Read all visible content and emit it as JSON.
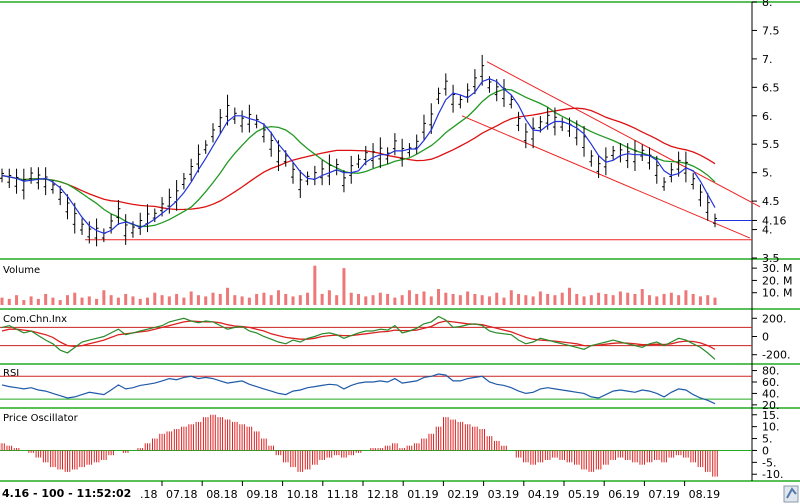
{
  "status_text": "4.16 - 100 - 11:52:02",
  "colors": {
    "price": "#000000",
    "ma_fast": "#2233dd",
    "ma_mid": "#229922",
    "ma_slow": "#dd1111",
    "trend": "#ee2222",
    "volume": "#ee7777",
    "cci": "#2a8a2a",
    "cci_signal": "#dd2222",
    "rsi": "#1f5aa8",
    "osc_pos": "#dd2222",
    "osc_neg": "#dd2222",
    "level": "#22aa22",
    "axis_bg": "#ffffff",
    "icon": "#5577aa"
  },
  "last_price_label": "4.16",
  "x_labels": [
    "07.18",
    "08.18",
    "09.18",
    "10.18",
    "11.18",
    "12.18",
    "01.19",
    "02.19",
    "03.19",
    "04.19",
    "05.19",
    "06.19",
    "07.19",
    "08.19"
  ],
  "x_label_partial": ".18",
  "chart_data": [
    {
      "type": "line",
      "name": "price",
      "series": [
        {
          "name": "",
          "values": [
            4.95,
            4.9,
            4.85,
            4.8,
            4.95,
            4.9,
            4.85,
            4.75,
            4.6,
            4.4,
            4.2,
            4.05,
            3.95,
            3.95,
            3.9,
            4.1,
            4.3,
            4.0,
            4.0,
            4.1,
            4.2,
            4.25,
            4.4,
            4.5,
            4.6,
            4.85,
            5.05,
            5.25,
            5.45,
            5.7,
            5.9,
            6.1,
            6.0,
            5.9,
            5.95,
            5.9,
            5.7,
            5.5,
            5.3,
            5.25,
            5.0,
            4.8,
            4.9,
            4.95,
            5.0,
            5.05,
            5.1,
            4.85,
            5.05,
            5.2,
            5.3,
            5.3,
            5.35,
            5.3,
            5.5,
            5.35,
            5.4,
            5.5,
            5.8,
            5.95,
            6.35,
            6.55,
            6.3,
            6.25,
            6.4,
            6.6,
            6.8,
            6.55,
            6.45,
            6.4,
            6.25,
            5.9,
            5.65,
            5.7,
            5.85,
            5.95,
            5.9,
            5.85,
            5.8,
            5.7,
            5.55,
            5.25,
            5.1,
            5.2,
            5.35,
            5.35,
            5.3,
            5.3,
            5.35,
            5.25,
            5.05,
            4.8,
            5.0,
            5.15,
            5.1,
            4.85,
            4.6,
            4.4,
            4.16
          ]
        }
      ],
      "ylim": [
        3.5,
        8.0
      ],
      "y_ticks": [
        "8.",
        "7.5",
        "7.",
        "6.5",
        "6.",
        "5.5",
        "5.",
        "4.5",
        "4.16",
        "4.",
        "3.5"
      ],
      "y_tick_values": [
        8.0,
        7.5,
        7.0,
        6.5,
        6.0,
        5.5,
        5.0,
        4.5,
        4.16,
        4.0,
        3.5
      ]
    },
    {
      "type": "bar",
      "title": "Volume",
      "y_ticks": [
        "30. M",
        "20. M",
        "10. M"
      ],
      "y_tick_values": [
        30,
        20,
        10
      ],
      "ylim": [
        0,
        35
      ],
      "values": [
        6,
        5,
        8,
        4,
        7,
        5,
        9,
        6,
        4,
        8,
        10,
        6,
        7,
        5,
        12,
        8,
        6,
        9,
        7,
        5,
        6,
        10,
        8,
        7,
        9,
        6,
        11,
        8,
        7,
        10,
        9,
        14,
        8,
        7,
        6,
        9,
        10,
        8,
        12,
        9,
        7,
        8,
        10,
        32,
        9,
        12,
        8,
        30,
        10,
        9,
        7,
        8,
        10,
        9,
        6,
        8,
        12,
        9,
        11,
        7,
        13,
        10,
        9,
        8,
        11,
        9,
        8,
        7,
        10,
        6,
        12,
        9,
        8,
        7,
        11,
        9,
        8,
        10,
        14,
        9,
        7,
        8,
        10,
        9,
        8,
        11,
        10,
        9,
        13,
        8,
        7,
        9,
        10,
        8,
        12,
        9,
        7,
        8,
        6
      ]
    },
    {
      "type": "line",
      "title": "Com.Chn.Inx",
      "y_ticks": [
        "200.",
        "0",
        "-200."
      ],
      "y_tick_values": [
        200,
        0,
        -200
      ],
      "ylim": [
        -280,
        280
      ],
      "series": [
        {
          "name": "",
          "values": [
            100,
            120,
            80,
            40,
            60,
            10,
            -40,
            -80,
            -150,
            -180,
            -120,
            -60,
            -40,
            -20,
            0,
            40,
            80,
            20,
            40,
            60,
            80,
            100,
            120,
            160,
            180,
            200,
            170,
            150,
            170,
            160,
            120,
            80,
            100,
            110,
            60,
            40,
            0,
            -30,
            -60,
            -80,
            -40,
            -60,
            -20,
            0,
            30,
            40,
            20,
            -20,
            10,
            40,
            60,
            60,
            80,
            70,
            120,
            40,
            60,
            90,
            140,
            160,
            220,
            180,
            100,
            110,
            130,
            140,
            120,
            60,
            40,
            30,
            20,
            -40,
            -80,
            -60,
            -20,
            -40,
            -60,
            -80,
            -100,
            -120,
            -140,
            -100,
            -80,
            -60,
            -40,
            -60,
            -80,
            -100,
            -120,
            -80,
            -60,
            -100,
            -60,
            -20,
            -40,
            -80,
            -120,
            -180,
            -250
          ]
        },
        {
          "name": "",
          "values": [
            60,
            80,
            80,
            70,
            60,
            40,
            20,
            -10,
            -60,
            -100,
            -110,
            -100,
            -80,
            -60,
            -40,
            -10,
            20,
            30,
            40,
            50,
            60,
            80,
            100,
            120,
            140,
            160,
            170,
            165,
            160,
            160,
            150,
            130,
            115,
            110,
            100,
            80,
            60,
            30,
            10,
            -10,
            -20,
            -30,
            -30,
            -20,
            0,
            10,
            15,
            10,
            10,
            20,
            30,
            40,
            50,
            55,
            70,
            65,
            65,
            70,
            90,
            110,
            150,
            170,
            160,
            150,
            140,
            135,
            130,
            110,
            90,
            70,
            50,
            20,
            -10,
            -30,
            -40,
            -45,
            -50,
            -60,
            -70,
            -80,
            -100,
            -100,
            -95,
            -85,
            -75,
            -70,
            -72,
            -80,
            -90,
            -90,
            -85,
            -88,
            -80,
            -60,
            -50,
            -55,
            -70,
            -100,
            -140
          ]
        }
      ],
      "levels": [
        100,
        -100
      ]
    },
    {
      "type": "line",
      "title": "RSI",
      "y_ticks": [
        "80.",
        "60.",
        "40.",
        "20."
      ],
      "y_tick_values": [
        80,
        60,
        40,
        20
      ],
      "ylim": [
        18,
        88
      ],
      "levels": [
        70,
        30
      ],
      "series": [
        {
          "name": "",
          "values": [
            55,
            52,
            50,
            48,
            50,
            46,
            44,
            40,
            36,
            32,
            34,
            38,
            42,
            40,
            38,
            46,
            55,
            48,
            50,
            54,
            56,
            58,
            62,
            66,
            64,
            68,
            70,
            66,
            68,
            66,
            62,
            58,
            60,
            62,
            56,
            52,
            48,
            44,
            40,
            38,
            44,
            46,
            50,
            52,
            54,
            56,
            55,
            48,
            54,
            58,
            60,
            60,
            62,
            60,
            66,
            58,
            60,
            62,
            68,
            70,
            74,
            72,
            62,
            62,
            66,
            68,
            70,
            60,
            56,
            54,
            50,
            44,
            40,
            42,
            48,
            50,
            48,
            46,
            44,
            42,
            40,
            34,
            32,
            38,
            44,
            46,
            44,
            42,
            46,
            44,
            40,
            34,
            42,
            48,
            46,
            38,
            32,
            28,
            22
          ]
        }
      ]
    },
    {
      "type": "bar",
      "title": "Price Oscillator",
      "y_ticks": [
        "15.",
        "10.",
        "5.",
        "0",
        "-5.",
        "-10."
      ],
      "y_tick_values": [
        15,
        10,
        5,
        0,
        -5,
        -10
      ],
      "ylim": [
        -12,
        17
      ],
      "values": [
        3,
        2,
        1,
        0,
        -1,
        -3,
        -5,
        -7,
        -8,
        -9,
        -8,
        -7,
        -6,
        -5,
        -4,
        -2,
        0,
        -1,
        0,
        1,
        3,
        5,
        7,
        8,
        9,
        10,
        11,
        12,
        14,
        15,
        14,
        13,
        12,
        11,
        10,
        8,
        5,
        2,
        -2,
        -5,
        -7,
        -9,
        -8,
        -6,
        -4,
        -3,
        -2,
        -3,
        -2,
        -1,
        0,
        1,
        1,
        2,
        3,
        1,
        2,
        3,
        5,
        7,
        10,
        14,
        13,
        12,
        11,
        10,
        9,
        6,
        4,
        2,
        0,
        -3,
        -5,
        -6,
        -5,
        -4,
        -3,
        -4,
        -5,
        -6,
        -8,
        -9,
        -8,
        -6,
        -4,
        -3,
        -4,
        -5,
        -6,
        -5,
        -4,
        -5,
        -3,
        -2,
        -3,
        -5,
        -7,
        -9,
        -11
      ]
    }
  ]
}
